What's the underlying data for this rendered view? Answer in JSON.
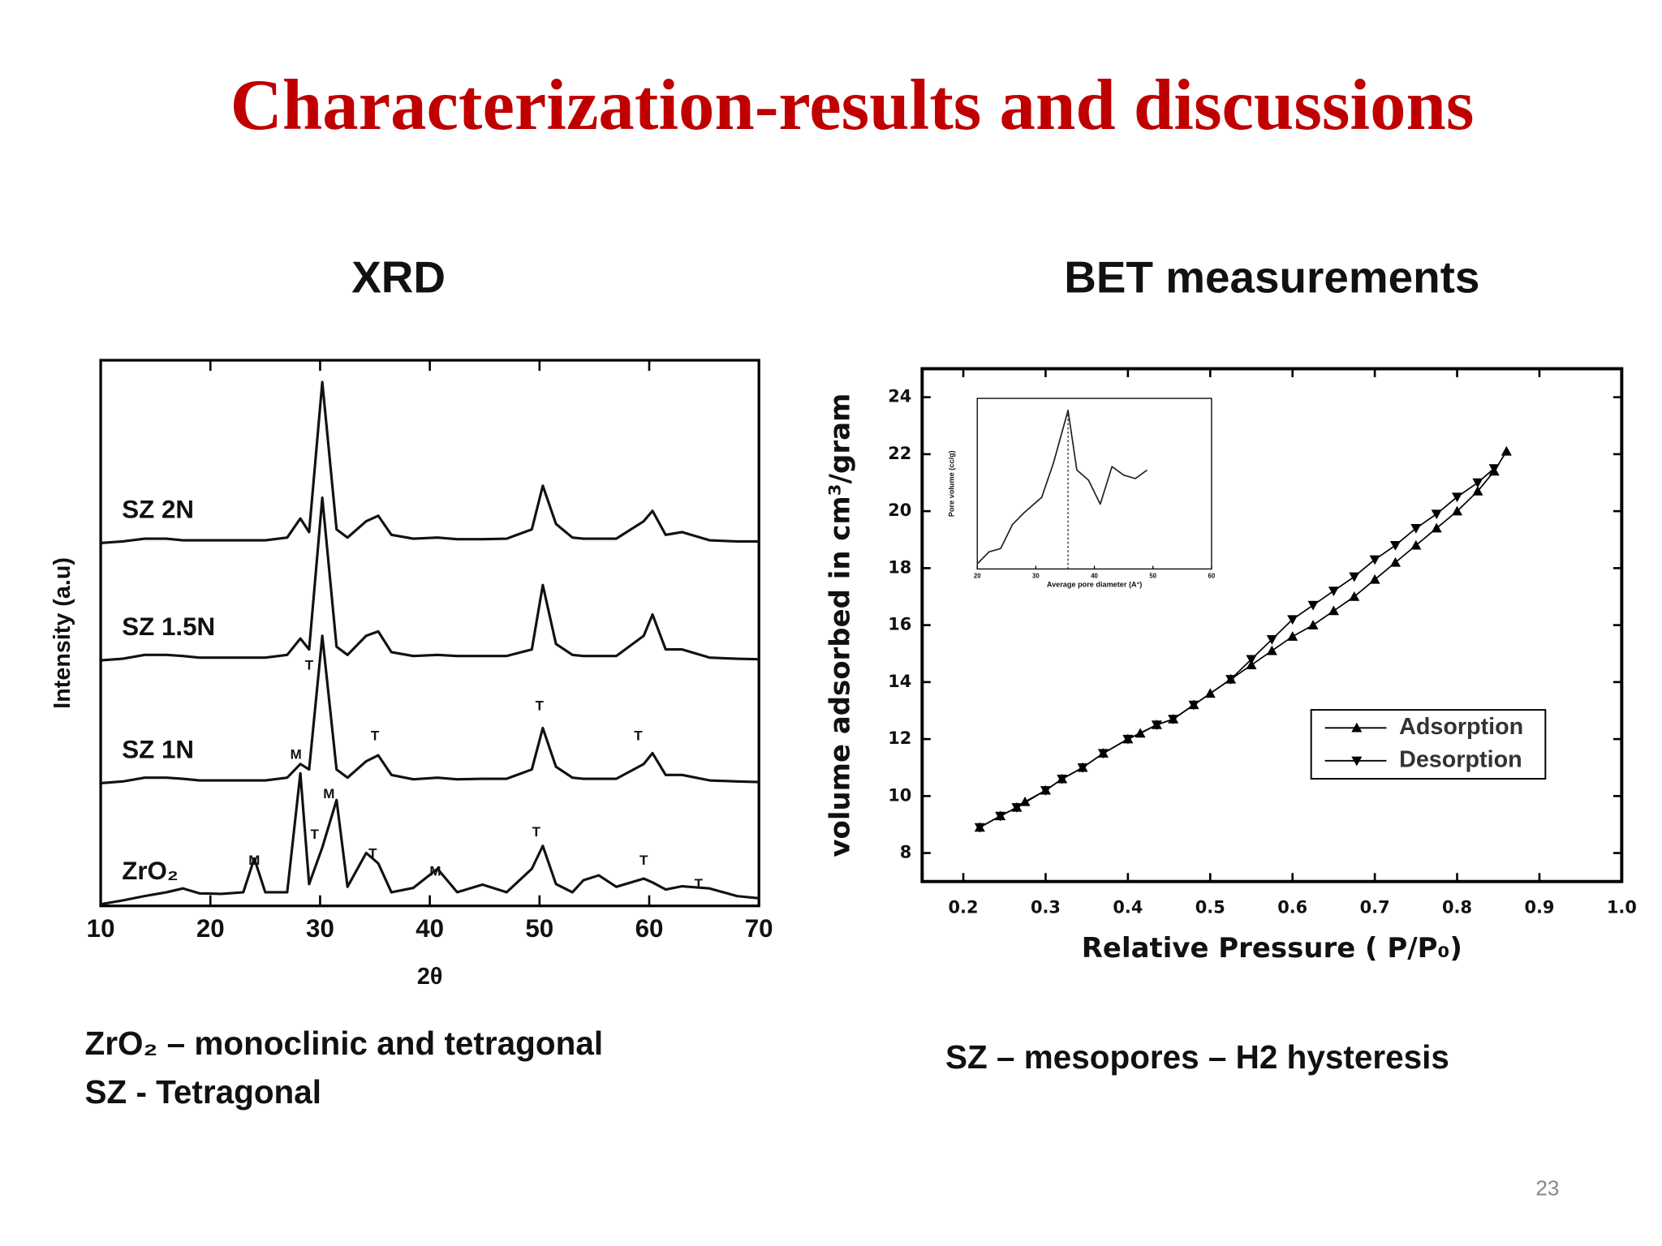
{
  "slide": {
    "title": "Characterization-results and discussions",
    "left_heading": "XRD",
    "right_heading": "BET measurements",
    "left_caption": [
      "ZrO₂ – monoclinic and tetragonal",
      "SZ - Tetragonal"
    ],
    "right_caption": "SZ – mesopores – H2 hysteresis",
    "page_number": "23"
  },
  "chart_data": [
    {
      "type": "line",
      "x": [
        10,
        12,
        14,
        16,
        17.5,
        19,
        21,
        23,
        24,
        25,
        27,
        28.2,
        29,
        30.2,
        31.5,
        32.5,
        34.2,
        35.3,
        36.5,
        38.5,
        40.7,
        42.5,
        44.8,
        47,
        49.3,
        50.3,
        51.5,
        53,
        54,
        55.4,
        57,
        59.5,
        60.3,
        61.5,
        63,
        65.5,
        68,
        70
      ],
      "series": [
        {
          "name": "SZ 2N",
          "color": "#111111",
          "values": [
            66.5,
            66.8,
            67.3,
            67.3,
            67,
            67,
            67,
            67,
            67,
            67,
            67.5,
            71,
            68.5,
            96,
            69,
            67.5,
            70.5,
            71.5,
            68,
            67.3,
            67.5,
            67.2,
            67.2,
            67.3,
            69,
            77,
            70,
            67.5,
            67.3,
            67.3,
            67.3,
            70.5,
            72.4,
            68,
            68.5,
            67,
            66.8,
            66.8
          ]
        },
        {
          "name": "SZ 1.5N",
          "color": "#111111",
          "values": [
            45,
            45.3,
            46,
            46,
            45.8,
            45.5,
            45.5,
            45.5,
            45.5,
            45.5,
            46,
            49,
            47,
            74.8,
            47.5,
            46,
            49.5,
            50.3,
            46.5,
            45.8,
            46,
            45.8,
            45.8,
            45.8,
            47,
            58.8,
            48,
            46,
            45.8,
            45.8,
            45.8,
            49.5,
            53.4,
            47,
            47,
            45.5,
            45.3,
            45.2
          ]
        },
        {
          "name": "SZ 1N",
          "color": "#111111",
          "values": [
            22.5,
            22.8,
            23.5,
            23.5,
            23.3,
            23,
            23,
            23,
            23,
            23,
            23.5,
            26,
            25,
            49.5,
            25,
            23.5,
            26.5,
            27.6,
            24,
            23.2,
            23.5,
            23.2,
            23.3,
            23.3,
            25,
            32.6,
            25.5,
            23.5,
            23.3,
            23.3,
            23.3,
            26,
            28,
            24,
            24,
            23,
            22.8,
            22.7
          ]
        },
        {
          "name": "ZrO₂",
          "color": "#111111",
          "values": [
            0.3,
            1,
            1.8,
            2.5,
            3.2,
            2.3,
            2.2,
            2.5,
            8.7,
            2.5,
            2.5,
            24.3,
            4,
            10.7,
            19.4,
            3.5,
            9.7,
            7.8,
            2.5,
            3.3,
            6.8,
            2.5,
            3.9,
            2.5,
            6.8,
            11,
            4,
            2.5,
            4.7,
            5.6,
            3.5,
            5,
            4.3,
            3,
            3.6,
            3.2,
            1.8,
            1.4
          ]
        }
      ],
      "xlim": [
        10,
        70
      ],
      "xticks": [
        10,
        20,
        30,
        40,
        50,
        60,
        70
      ],
      "ylim": [
        0,
        100
      ],
      "x_label": "2θ",
      "y_label": "Intensity (a.u)",
      "annotations": [
        {
          "text": "T",
          "x": 29,
          "y": 44
        },
        {
          "text": "T",
          "x": 35,
          "y": 31
        },
        {
          "text": "T",
          "x": 50,
          "y": 36.5
        },
        {
          "text": "T",
          "x": 59,
          "y": 31
        },
        {
          "text": "M",
          "x": 27.8,
          "y": 27.6
        },
        {
          "text": "M",
          "x": 30.8,
          "y": 20.4
        },
        {
          "text": "M",
          "x": 24,
          "y": 8.2
        },
        {
          "text": "T",
          "x": 29.5,
          "y": 13
        },
        {
          "text": "T",
          "x": 34.8,
          "y": 9.5
        },
        {
          "text": "M",
          "x": 40.5,
          "y": 6.2
        },
        {
          "text": "T",
          "x": 49.7,
          "y": 13.4
        },
        {
          "text": "T",
          "x": 59.5,
          "y": 8.2
        },
        {
          "text": "T",
          "x": 64.5,
          "y": 3.9
        }
      ]
    },
    {
      "type": "line",
      "series": [
        {
          "name": "Adsorption",
          "color": "#000000",
          "marker": "triangle-up",
          "x": [
            0.22,
            0.245,
            0.265,
            0.275,
            0.3,
            0.32,
            0.345,
            0.37,
            0.4,
            0.415,
            0.435,
            0.455,
            0.48,
            0.5,
            0.525,
            0.55,
            0.575,
            0.6,
            0.625,
            0.65,
            0.675,
            0.7,
            0.725,
            0.75,
            0.775,
            0.8,
            0.825,
            0.845,
            0.86
          ],
          "values": [
            8.9,
            9.3,
            9.6,
            9.8,
            10.2,
            10.6,
            11,
            11.5,
            12,
            12.2,
            12.5,
            12.7,
            13.2,
            13.6,
            14.1,
            14.6,
            15.1,
            15.6,
            16,
            16.5,
            17,
            17.6,
            18.2,
            18.8,
            19.4,
            20,
            20.7,
            21.4,
            22.1
          ]
        },
        {
          "name": "Desorption",
          "color": "#000000",
          "marker": "triangle-down",
          "x": [
            0.22,
            0.245,
            0.265,
            0.3,
            0.32,
            0.345,
            0.37,
            0.4,
            0.435,
            0.455,
            0.48,
            0.525,
            0.55,
            0.575,
            0.6,
            0.625,
            0.65,
            0.675,
            0.7,
            0.725,
            0.75,
            0.775,
            0.8,
            0.825,
            0.845
          ],
          "values": [
            8.9,
            9.3,
            9.6,
            10.2,
            10.6,
            11,
            11.5,
            12,
            12.5,
            12.7,
            13.2,
            14.1,
            14.8,
            15.5,
            16.2,
            16.7,
            17.2,
            17.7,
            18.3,
            18.8,
            19.4,
            19.9,
            20.5,
            21,
            21.5
          ]
        }
      ],
      "xlim": [
        0.15,
        1
      ],
      "xticks": [
        0.2,
        0.3,
        0.4,
        0.5,
        0.6,
        0.7,
        0.8,
        0.9,
        {
          "value": 1,
          "label": "1.0"
        }
      ],
      "ylim": [
        7,
        25
      ],
      "yticks": [
        8,
        10,
        12,
        14,
        16,
        18,
        20,
        22,
        24
      ],
      "x_label": "Relative Pressure ( P/P₀)",
      "y_label": "volume adsorbed in cm³/gram",
      "legend": "lower right"
    },
    {
      "type": "line",
      "x": [
        20,
        22,
        24,
        26,
        28,
        31,
        33,
        35.5,
        37,
        39,
        41,
        43,
        45,
        47,
        49
      ],
      "values": [
        0.03,
        0.1,
        0.12,
        0.26,
        0.33,
        0.42,
        0.62,
        0.93,
        0.58,
        0.52,
        0.38,
        0.6,
        0.55,
        0.53,
        0.58
      ],
      "color": "#222222",
      "xlim": [
        20,
        60
      ],
      "xticks": [
        20,
        30,
        40,
        50,
        60
      ],
      "ylim": [
        0,
        1
      ],
      "x_label": "Average pore diameter (A°)",
      "y_label": "Pore volume (cc/g)"
    }
  ]
}
